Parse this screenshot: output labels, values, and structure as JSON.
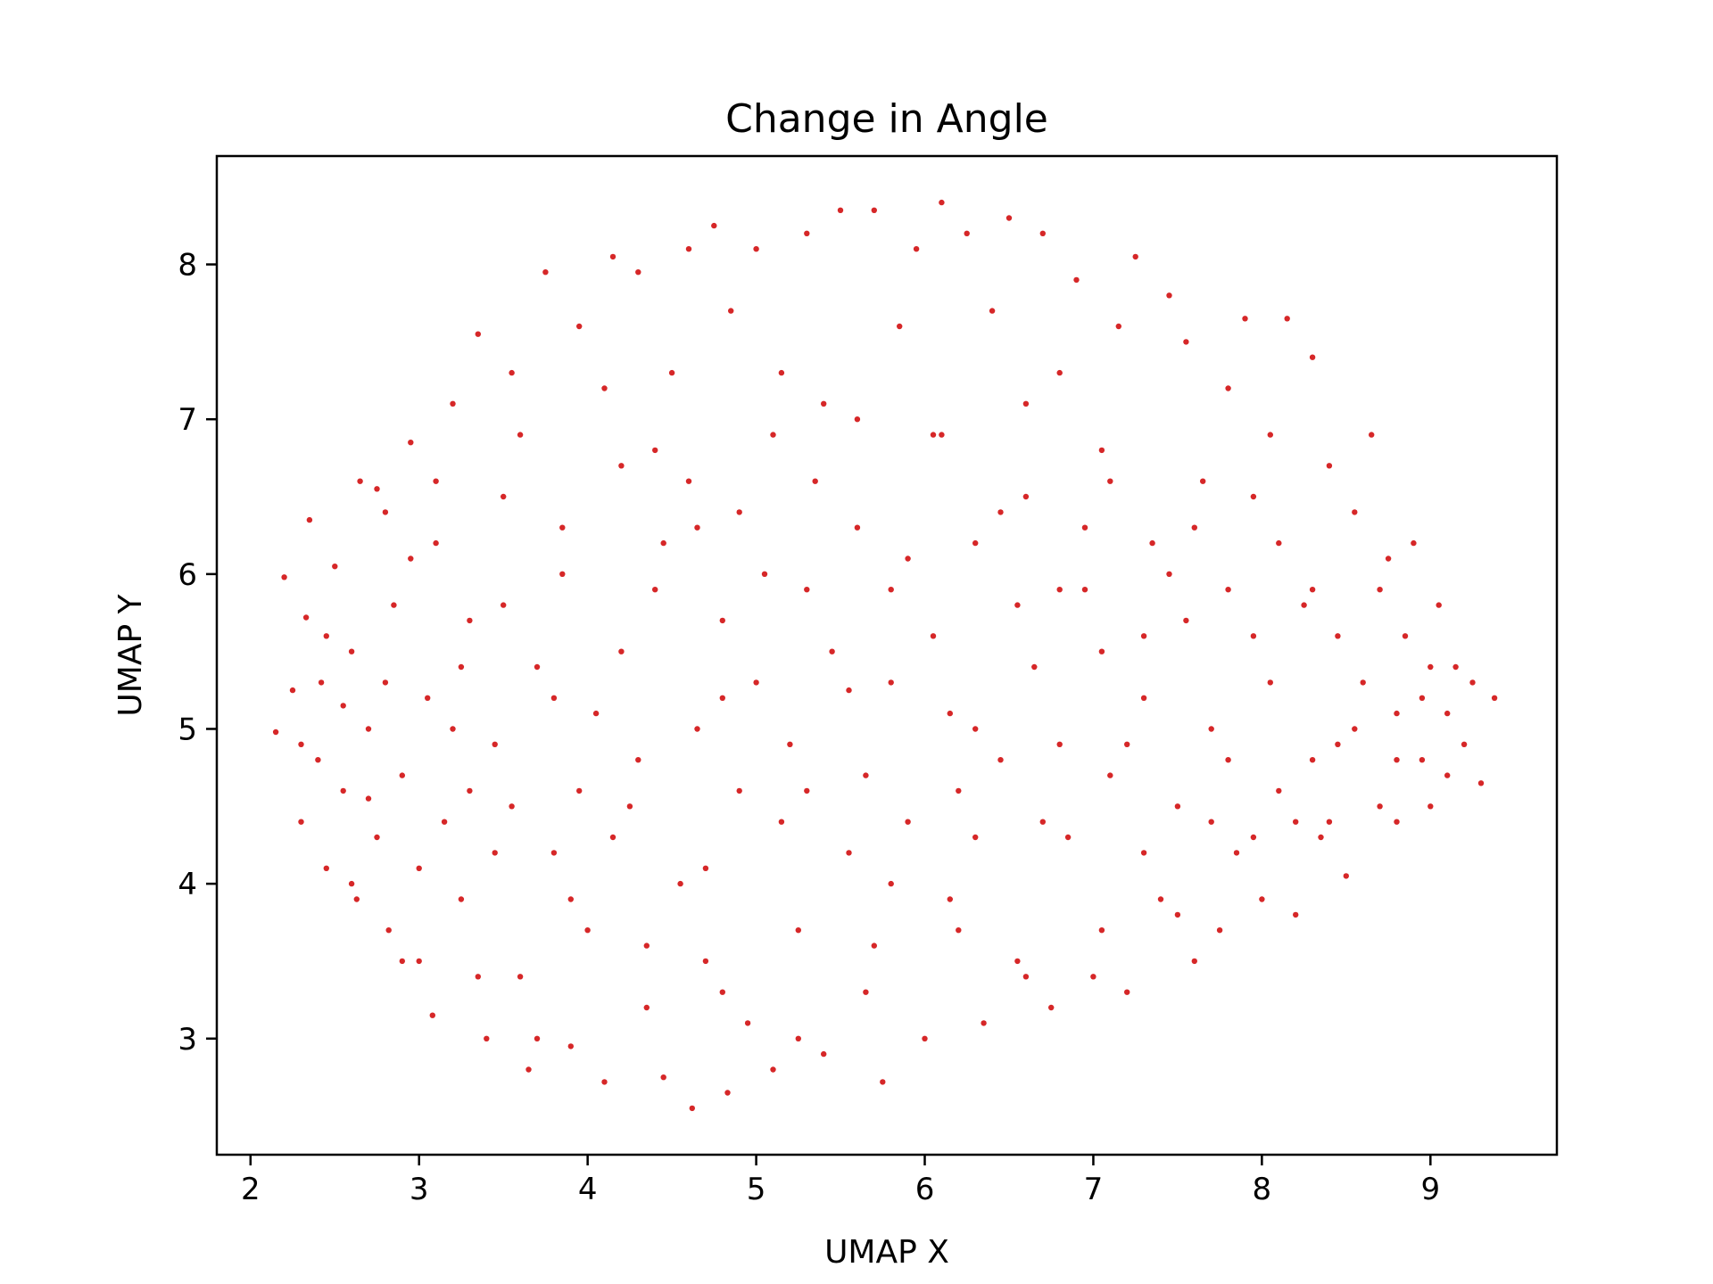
{
  "chart_data": {
    "type": "scatter",
    "title": "Change in Angle",
    "xlabel": "UMAP X",
    "ylabel": "UMAP Y",
    "xlim": [
      1.8,
      9.75
    ],
    "ylim": [
      2.25,
      8.7
    ],
    "xticks": [
      2,
      3,
      4,
      5,
      6,
      7,
      8,
      9
    ],
    "yticks": [
      3,
      4,
      5,
      6,
      7,
      8
    ],
    "grid": false,
    "legend": "none",
    "point_color": "#d62728",
    "series": [
      {
        "points": [
          [
            2.15,
            4.98
          ],
          [
            2.2,
            5.98
          ],
          [
            2.25,
            5.25
          ],
          [
            2.3,
            4.4
          ],
          [
            2.33,
            5.72
          ],
          [
            2.35,
            6.35
          ],
          [
            2.4,
            4.8
          ],
          [
            2.42,
            5.3
          ],
          [
            2.45,
            4.1
          ],
          [
            2.5,
            6.05
          ],
          [
            2.55,
            4.6
          ],
          [
            2.6,
            5.5
          ],
          [
            2.63,
            3.9
          ],
          [
            2.65,
            6.6
          ],
          [
            2.7,
            5.0
          ],
          [
            2.75,
            4.3
          ],
          [
            2.8,
            6.4
          ],
          [
            2.82,
            3.7
          ],
          [
            2.85,
            5.8
          ],
          [
            2.9,
            4.7
          ],
          [
            2.95,
            6.85
          ],
          [
            3.0,
            3.5
          ],
          [
            3.05,
            5.2
          ],
          [
            3.08,
            3.15
          ],
          [
            3.1,
            6.2
          ],
          [
            3.15,
            4.4
          ],
          [
            3.2,
            7.1
          ],
          [
            3.25,
            3.9
          ],
          [
            3.3,
            5.7
          ],
          [
            3.35,
            7.55
          ],
          [
            3.4,
            3.0
          ],
          [
            3.45,
            4.9
          ],
          [
            3.5,
            6.5
          ],
          [
            3.55,
            7.3
          ],
          [
            3.6,
            3.4
          ],
          [
            3.65,
            2.8
          ],
          [
            3.7,
            5.4
          ],
          [
            3.75,
            7.95
          ],
          [
            3.8,
            4.2
          ],
          [
            3.85,
            6.0
          ],
          [
            3.9,
            2.95
          ],
          [
            3.95,
            7.6
          ],
          [
            4.0,
            3.7
          ],
          [
            4.05,
            5.1
          ],
          [
            4.1,
            2.72
          ],
          [
            4.15,
            8.05
          ],
          [
            4.2,
            6.7
          ],
          [
            4.25,
            4.5
          ],
          [
            4.3,
            7.95
          ],
          [
            4.35,
            3.2
          ],
          [
            4.4,
            5.9
          ],
          [
            4.45,
            2.75
          ],
          [
            4.5,
            7.3
          ],
          [
            4.55,
            4.0
          ],
          [
            4.6,
            8.1
          ],
          [
            4.62,
            2.55
          ],
          [
            4.65,
            6.3
          ],
          [
            4.7,
            3.5
          ],
          [
            4.75,
            8.25
          ],
          [
            4.8,
            5.2
          ],
          [
            4.83,
            2.65
          ],
          [
            4.85,
            7.7
          ],
          [
            4.9,
            4.6
          ],
          [
            4.95,
            3.1
          ],
          [
            5.0,
            8.1
          ],
          [
            5.05,
            6.0
          ],
          [
            5.1,
            2.8
          ],
          [
            5.15,
            7.3
          ],
          [
            5.2,
            4.9
          ],
          [
            5.25,
            3.7
          ],
          [
            5.3,
            8.2
          ],
          [
            5.35,
            6.6
          ],
          [
            5.4,
            2.9
          ],
          [
            5.45,
            5.5
          ],
          [
            5.5,
            8.35
          ],
          [
            5.55,
            4.2
          ],
          [
            5.6,
            7.0
          ],
          [
            5.65,
            3.3
          ],
          [
            5.7,
            8.35
          ],
          [
            5.75,
            2.72
          ],
          [
            5.8,
            5.9
          ],
          [
            5.85,
            7.6
          ],
          [
            5.9,
            4.4
          ],
          [
            5.95,
            8.1
          ],
          [
            6.0,
            3.0
          ],
          [
            6.05,
            6.9
          ],
          [
            6.1,
            8.4
          ],
          [
            6.15,
            5.1
          ],
          [
            6.2,
            3.7
          ],
          [
            6.25,
            8.2
          ],
          [
            6.3,
            6.2
          ],
          [
            6.35,
            3.1
          ],
          [
            6.4,
            7.7
          ],
          [
            6.45,
            4.8
          ],
          [
            6.5,
            8.3
          ],
          [
            6.55,
            3.5
          ],
          [
            6.6,
            6.5
          ],
          [
            6.65,
            5.4
          ],
          [
            6.7,
            8.2
          ],
          [
            6.75,
            3.2
          ],
          [
            6.8,
            7.3
          ],
          [
            6.85,
            4.3
          ],
          [
            6.9,
            7.9
          ],
          [
            6.95,
            5.9
          ],
          [
            7.0,
            3.4
          ],
          [
            7.05,
            6.8
          ],
          [
            7.1,
            4.7
          ],
          [
            7.15,
            7.6
          ],
          [
            7.2,
            3.3
          ],
          [
            7.25,
            8.05
          ],
          [
            7.3,
            5.2
          ],
          [
            7.35,
            6.2
          ],
          [
            7.4,
            3.9
          ],
          [
            7.45,
            7.8
          ],
          [
            7.5,
            4.5
          ],
          [
            7.55,
            7.5
          ],
          [
            7.6,
            3.5
          ],
          [
            7.65,
            6.6
          ],
          [
            7.7,
            5.0
          ],
          [
            7.75,
            3.7
          ],
          [
            7.8,
            7.2
          ],
          [
            7.85,
            4.2
          ],
          [
            7.9,
            7.65
          ],
          [
            7.95,
            5.6
          ],
          [
            8.0,
            3.9
          ],
          [
            8.05,
            6.9
          ],
          [
            8.1,
            4.6
          ],
          [
            8.15,
            7.65
          ],
          [
            8.2,
            3.8
          ],
          [
            8.25,
            5.8
          ],
          [
            8.3,
            7.4
          ],
          [
            8.35,
            4.3
          ],
          [
            8.4,
            6.7
          ],
          [
            8.45,
            4.9
          ],
          [
            8.5,
            4.05
          ],
          [
            8.55,
            6.4
          ],
          [
            8.6,
            5.3
          ],
          [
            8.65,
            6.9
          ],
          [
            8.7,
            4.5
          ],
          [
            8.75,
            6.1
          ],
          [
            8.8,
            4.4
          ],
          [
            8.85,
            5.6
          ],
          [
            8.9,
            6.2
          ],
          [
            8.95,
            4.8
          ],
          [
            9.0,
            4.5
          ],
          [
            9.05,
            5.8
          ],
          [
            9.1,
            4.7
          ],
          [
            9.15,
            5.4
          ],
          [
            9.2,
            4.9
          ],
          [
            9.25,
            5.3
          ],
          [
            9.3,
            4.65
          ],
          [
            9.38,
            5.2
          ],
          [
            2.3,
            4.9
          ],
          [
            2.55,
            5.15
          ],
          [
            2.75,
            6.55
          ],
          [
            2.9,
            3.5
          ],
          [
            3.2,
            5.0
          ],
          [
            3.35,
            3.4
          ],
          [
            3.5,
            5.8
          ],
          [
            3.7,
            3.0
          ],
          [
            3.95,
            4.6
          ],
          [
            4.2,
            5.5
          ],
          [
            4.45,
            6.2
          ],
          [
            4.7,
            4.1
          ],
          [
            5.0,
            5.3
          ],
          [
            5.3,
            4.6
          ],
          [
            5.55,
            5.25
          ],
          [
            5.8,
            4.0
          ],
          [
            6.05,
            5.6
          ],
          [
            6.3,
            4.3
          ],
          [
            6.55,
            5.8
          ],
          [
            6.8,
            4.9
          ],
          [
            7.05,
            5.5
          ],
          [
            7.3,
            4.2
          ],
          [
            7.55,
            5.7
          ],
          [
            7.8,
            4.8
          ],
          [
            8.05,
            5.3
          ],
          [
            8.3,
            4.8
          ],
          [
            8.55,
            5.0
          ],
          [
            8.8,
            5.1
          ],
          [
            9.0,
            5.4
          ],
          [
            3.1,
            6.6
          ],
          [
            3.6,
            6.9
          ],
          [
            4.1,
            7.2
          ],
          [
            4.6,
            6.6
          ],
          [
            5.1,
            6.9
          ],
          [
            5.6,
            6.3
          ],
          [
            6.1,
            6.9
          ],
          [
            6.6,
            7.1
          ],
          [
            7.1,
            6.6
          ],
          [
            7.6,
            6.3
          ],
          [
            8.1,
            6.2
          ],
          [
            3.0,
            4.1
          ],
          [
            3.45,
            4.2
          ],
          [
            3.9,
            3.9
          ],
          [
            4.35,
            3.6
          ],
          [
            4.8,
            3.3
          ],
          [
            5.25,
            3.0
          ],
          [
            5.7,
            3.6
          ],
          [
            6.15,
            3.9
          ],
          [
            6.6,
            3.4
          ],
          [
            7.05,
            3.7
          ],
          [
            7.5,
            3.8
          ],
          [
            7.95,
            4.3
          ],
          [
            8.4,
            4.4
          ],
          [
            2.6,
            4.0
          ],
          [
            2.8,
            5.3
          ],
          [
            3.3,
            4.6
          ],
          [
            3.8,
            5.2
          ],
          [
            4.3,
            4.8
          ],
          [
            4.8,
            5.7
          ],
          [
            5.3,
            5.9
          ],
          [
            5.8,
            5.3
          ],
          [
            6.3,
            5.0
          ],
          [
            6.8,
            5.9
          ],
          [
            7.3,
            5.6
          ],
          [
            7.8,
            5.9
          ],
          [
            8.3,
            5.9
          ],
          [
            8.8,
            4.8
          ],
          [
            9.1,
            5.1
          ],
          [
            2.45,
            5.6
          ],
          [
            2.7,
            4.55
          ],
          [
            2.95,
            6.1
          ],
          [
            3.25,
            5.4
          ],
          [
            3.55,
            4.5
          ],
          [
            3.85,
            6.3
          ],
          [
            4.15,
            4.3
          ],
          [
            4.4,
            6.8
          ],
          [
            4.65,
            5.0
          ],
          [
            4.9,
            6.4
          ],
          [
            5.15,
            4.4
          ],
          [
            5.4,
            7.1
          ],
          [
            5.65,
            4.7
          ],
          [
            5.9,
            6.1
          ],
          [
            6.2,
            4.6
          ],
          [
            6.45,
            6.4
          ],
          [
            6.7,
            4.4
          ],
          [
            6.95,
            6.3
          ],
          [
            7.2,
            4.9
          ],
          [
            7.45,
            6.0
          ],
          [
            7.7,
            4.4
          ],
          [
            7.95,
            6.5
          ],
          [
            8.2,
            4.4
          ],
          [
            8.45,
            5.6
          ],
          [
            8.7,
            5.9
          ],
          [
            8.95,
            5.2
          ]
        ]
      }
    ]
  }
}
